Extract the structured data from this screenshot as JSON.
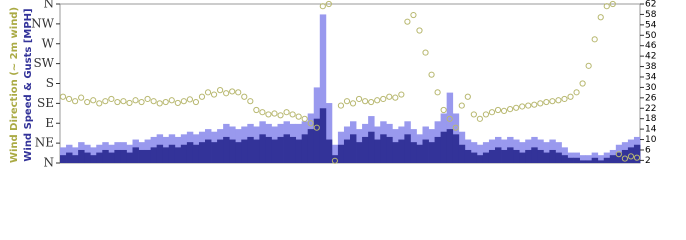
{
  "chart_data": {
    "type": "bar",
    "ylabel": "Wind Speed & Gusts [MPH]",
    "y2label": "Wind Direction (~ 2m wind)",
    "ylim": [
      1,
      62
    ],
    "yticks": [
      2,
      6,
      10,
      14,
      18,
      22,
      26,
      30,
      34,
      38,
      42,
      46,
      50,
      54,
      58,
      62
    ],
    "y2lim": [
      0,
      360
    ],
    "y2ticks": [
      {
        "value": 0,
        "label": "N"
      },
      {
        "value": 45,
        "label": "NE"
      },
      {
        "value": 90,
        "label": "E"
      },
      {
        "value": 135,
        "label": "SE"
      },
      {
        "value": 180,
        "label": "S"
      },
      {
        "value": 225,
        "label": "SW"
      },
      {
        "value": 270,
        "label": "W"
      },
      {
        "value": 315,
        "label": "NW"
      },
      {
        "value": 360,
        "label": "N"
      }
    ],
    "series": [
      {
        "type": "bar",
        "color": "#9999ee",
        "values": [
          7,
          8,
          7,
          9,
          8,
          7,
          8,
          9,
          8,
          9,
          9,
          8,
          10,
          9,
          10,
          11,
          12,
          11,
          12,
          11,
          12,
          13,
          12,
          13,
          14,
          13,
          14,
          16,
          15,
          14,
          15,
          16,
          15,
          17,
          16,
          15,
          16,
          17,
          16,
          16,
          17,
          20,
          30,
          58,
          24,
          8,
          13,
          15,
          17,
          14,
          16,
          19,
          15,
          17,
          16,
          14,
          15,
          17,
          14,
          12,
          15,
          14,
          17,
          20,
          28,
          20,
          13,
          10,
          9,
          8,
          9,
          10,
          11,
          10,
          11,
          10,
          9,
          10,
          11,
          10,
          9,
          10,
          9,
          7,
          5,
          5,
          4,
          4,
          5,
          4,
          5,
          6,
          8,
          9,
          10,
          11
        ]
      },
      {
        "type": "bar",
        "color": "#333399",
        "values": [
          4,
          5,
          4,
          6,
          5,
          4,
          5,
          6,
          5,
          6,
          6,
          5,
          7,
          6,
          6,
          7,
          8,
          7,
          8,
          7,
          8,
          9,
          8,
          9,
          10,
          9,
          10,
          11,
          10,
          9,
          10,
          11,
          10,
          12,
          11,
          10,
          11,
          12,
          11,
          10,
          12,
          14,
          18,
          22,
          10,
          4,
          8,
          10,
          12,
          9,
          11,
          13,
          10,
          12,
          11,
          9,
          10,
          12,
          9,
          8,
          10,
          9,
          11,
          13,
          14,
          12,
          8,
          6,
          5,
          4,
          5,
          6,
          7,
          6,
          7,
          6,
          5,
          6,
          7,
          6,
          5,
          6,
          5,
          4,
          3,
          3,
          2,
          2,
          3,
          2,
          3,
          4,
          5,
          6,
          7,
          8
        ]
      },
      {
        "type": "scatter",
        "axis": "y2",
        "color": "#b8b870",
        "values": [
          150,
          145,
          140,
          148,
          138,
          142,
          135,
          140,
          145,
          138,
          140,
          136,
          142,
          138,
          145,
          140,
          135,
          138,
          142,
          136,
          140,
          144,
          138,
          150,
          160,
          155,
          165,
          158,
          162,
          160,
          150,
          140,
          120,
          115,
          110,
          112,
          108,
          115,
          110,
          105,
          100,
          90,
          80,
          355,
          360,
          5,
          130,
          140,
          135,
          145,
          140,
          138,
          142,
          145,
          150,
          148,
          155,
          320,
          335,
          300,
          250,
          200,
          160,
          120,
          100,
          80,
          130,
          150,
          110,
          100,
          110,
          115,
          120,
          118,
          122,
          125,
          128,
          130,
          132,
          135,
          138,
          140,
          142,
          145,
          150,
          160,
          180,
          220,
          280,
          330,
          355,
          360,
          20,
          10,
          15,
          12
        ]
      }
    ]
  }
}
